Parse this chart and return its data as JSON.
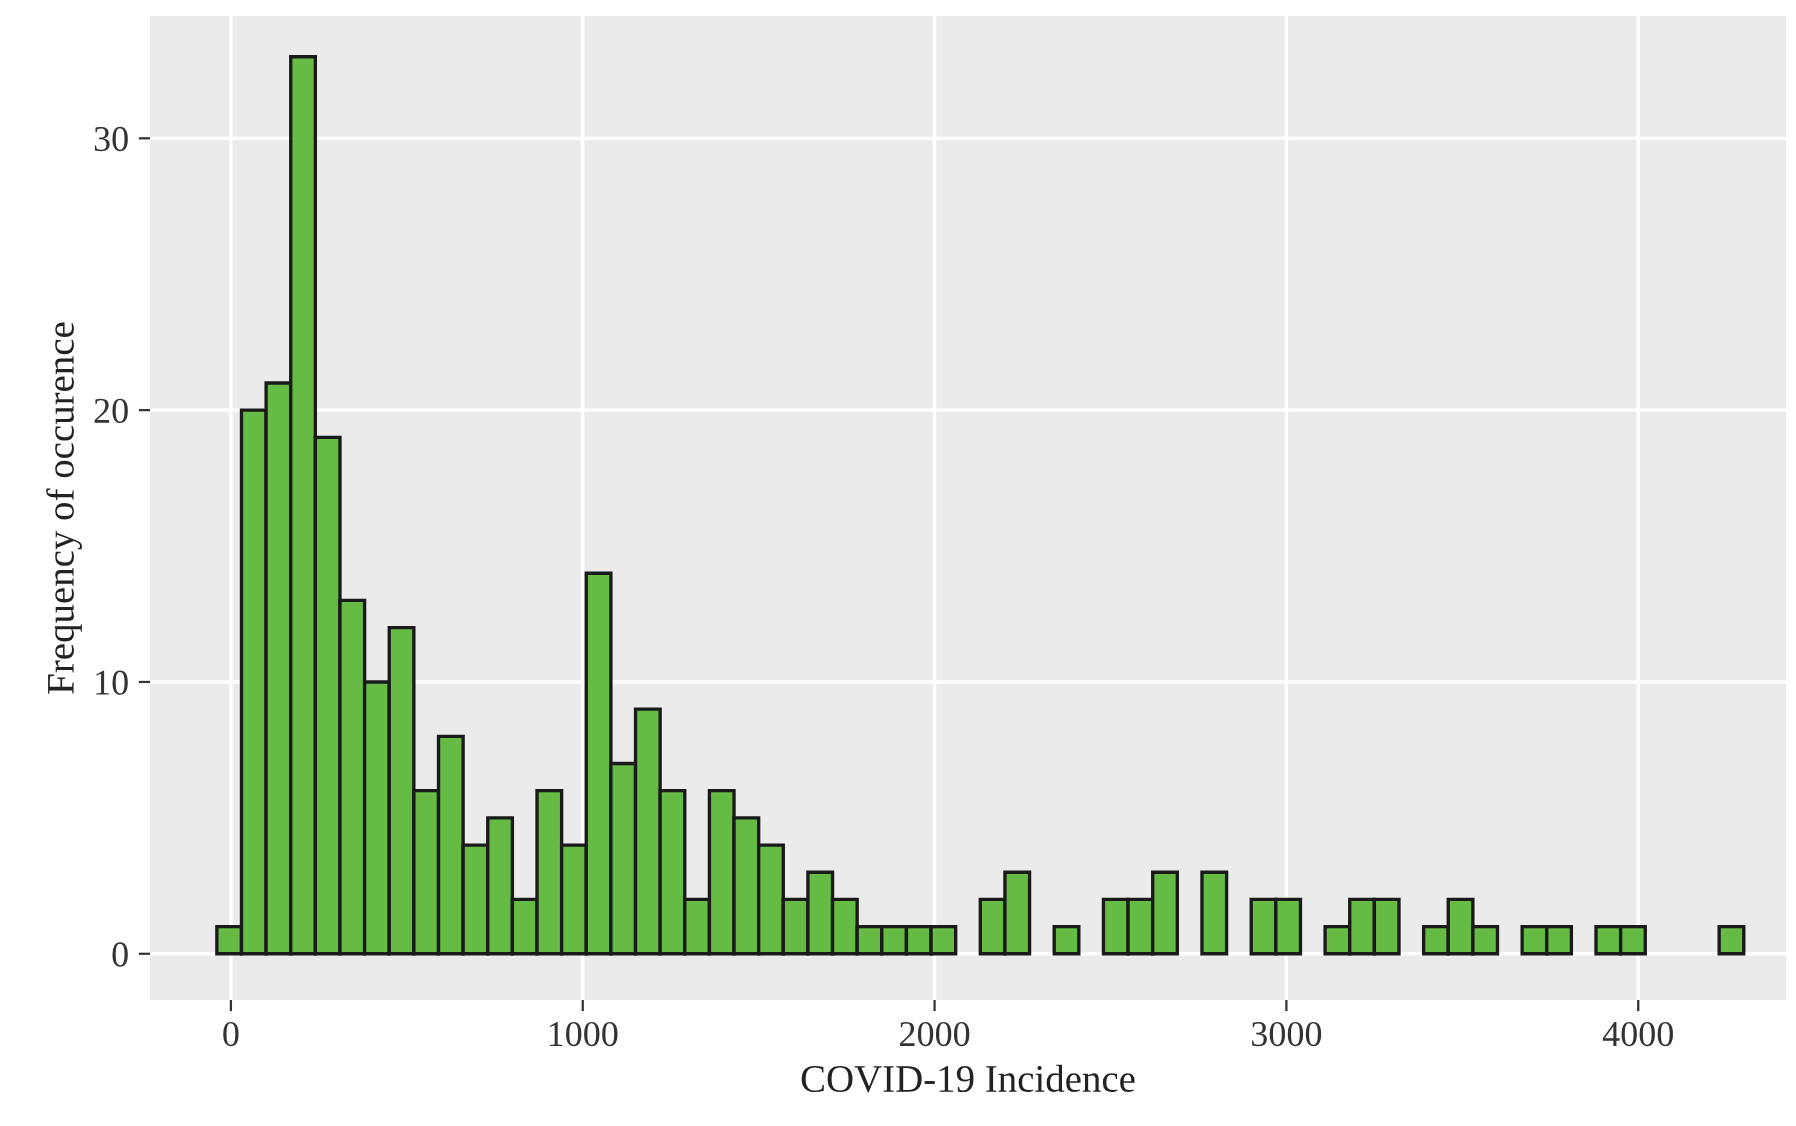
{
  "chart_data": {
    "type": "histogram",
    "xlabel": "COVID-19 Incidence",
    "ylabel": "Frequency of occurence",
    "bins": [
      -40,
      30,
      100,
      170,
      240,
      310,
      380,
      450,
      520,
      590,
      660,
      730,
      800,
      870,
      940,
      1010,
      1080,
      1150,
      1220,
      1290,
      1360,
      1430,
      1500,
      1570,
      1640,
      1710,
      1780,
      1850,
      1920,
      1990,
      2060,
      2130,
      2200,
      2270,
      2340,
      2410,
      2480,
      2550,
      2620,
      2690,
      2760,
      2830,
      2900,
      2970,
      3040,
      3110,
      3180,
      3250,
      3320,
      3390,
      3460,
      3530,
      3600,
      3670,
      3740,
      3810,
      3880,
      3950,
      4020,
      4090,
      4160,
      4230,
      4300
    ],
    "values": [
      1,
      20,
      21,
      33,
      19,
      13,
      10,
      12,
      6,
      8,
      4,
      5,
      2,
      6,
      4,
      14,
      7,
      9,
      6,
      2,
      6,
      5,
      4,
      2,
      3,
      2,
      1,
      1,
      1,
      1,
      0,
      2,
      3,
      0,
      1,
      0,
      2,
      2,
      3,
      0,
      3,
      0,
      2,
      2,
      0,
      1,
      2,
      2,
      0,
      1,
      2,
      1,
      0,
      1,
      1,
      0,
      1,
      1,
      0,
      0,
      0,
      1
    ],
    "color": "#66bb44",
    "xlim": [
      -230,
      4420
    ],
    "xticks": [
      0,
      1000,
      2000,
      3000,
      4000
    ],
    "ylim": [
      -1.7,
      34.5
    ],
    "yticks": [
      0,
      10,
      20,
      30
    ],
    "grid": true
  }
}
